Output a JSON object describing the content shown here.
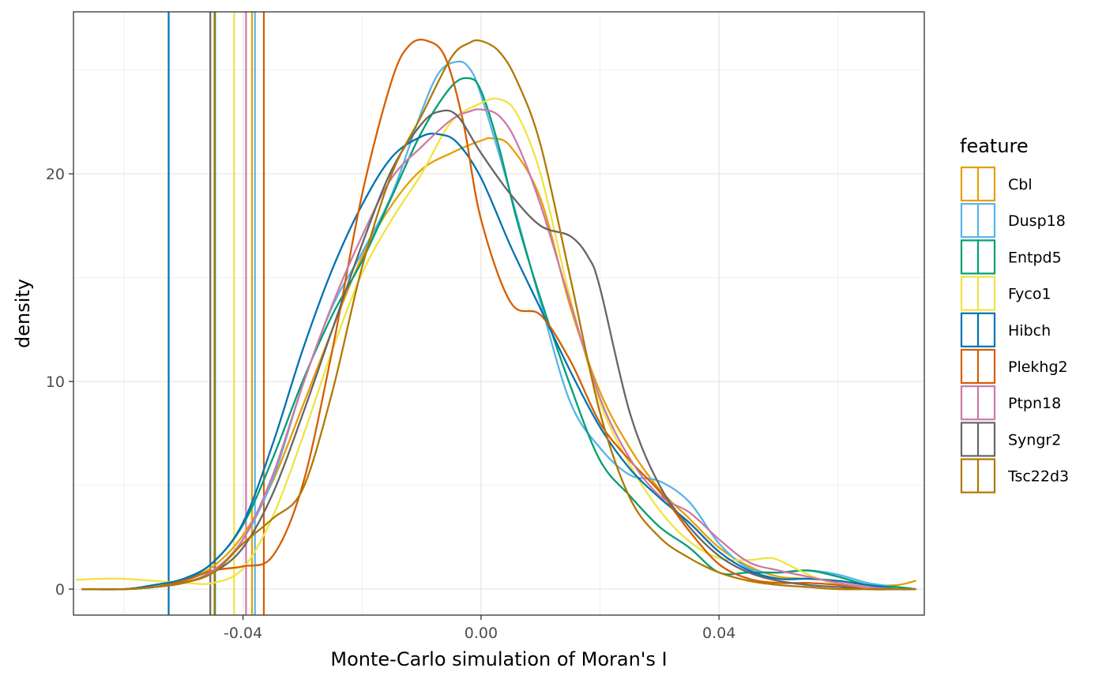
{
  "chart_data": {
    "type": "line",
    "subtype": "density",
    "title": "",
    "xlabel": "Monte-Carlo simulation of Moran's I",
    "ylabel": "density",
    "xlim": [
      -0.0685,
      0.0745
    ],
    "ylim": [
      -1.25,
      27.8
    ],
    "x_ticks": [
      -0.04,
      0.0,
      0.04
    ],
    "x_tick_labels": [
      "-0.04",
      "0.00",
      "0.04"
    ],
    "y_ticks": [
      0,
      10,
      20
    ],
    "y_tick_labels": [
      "0",
      "10",
      "20"
    ],
    "grid": true,
    "legend": {
      "title": "feature",
      "placement": "right"
    },
    "series": [
      {
        "name": "Cbl",
        "color": "#E69F00",
        "observed": -0.0385,
        "x": [
          -0.067,
          -0.06,
          -0.055,
          -0.05,
          -0.045,
          -0.04,
          -0.035,
          -0.03,
          -0.025,
          -0.02,
          -0.015,
          -0.01,
          -0.005,
          0,
          0.002,
          0.005,
          0.01,
          0.015,
          0.02,
          0.025,
          0.03,
          0.035,
          0.04,
          0.045,
          0.05,
          0.055,
          0.06,
          0.065,
          0.07,
          0.073
        ],
        "y": [
          0,
          0,
          0.1,
          0.4,
          1.1,
          2.6,
          5.2,
          8.8,
          12.5,
          16.0,
          18.5,
          20.2,
          21.0,
          21.6,
          21.7,
          21.3,
          18.8,
          13.6,
          9.5,
          6.8,
          4.8,
          3.4,
          2.0,
          1.1,
          0.6,
          0.5,
          0.4,
          0.2,
          0.2,
          0.4
        ]
      },
      {
        "name": "Dusp18",
        "color": "#56B4E9",
        "observed": -0.038,
        "x": [
          -0.067,
          -0.06,
          -0.055,
          -0.05,
          -0.045,
          -0.04,
          -0.035,
          -0.03,
          -0.025,
          -0.02,
          -0.015,
          -0.01,
          -0.007,
          -0.004,
          -0.002,
          0,
          0.005,
          0.01,
          0.015,
          0.02,
          0.025,
          0.03,
          0.035,
          0.04,
          0.045,
          0.05,
          0.055,
          0.06,
          0.065,
          0.07,
          0.073
        ],
        "y": [
          0,
          0,
          0.1,
          0.3,
          0.9,
          2.4,
          5.3,
          9.8,
          13.6,
          16.2,
          19.0,
          23.0,
          24.9,
          25.4,
          25.1,
          23.8,
          19.0,
          13.8,
          9.0,
          6.8,
          5.5,
          5.2,
          4.2,
          2.2,
          1.0,
          0.8,
          0.9,
          0.7,
          0.3,
          0.1,
          0
        ]
      },
      {
        "name": "Entpd5",
        "color": "#009E73",
        "observed": -0.0447,
        "x": [
          -0.067,
          -0.06,
          -0.055,
          -0.05,
          -0.045,
          -0.04,
          -0.035,
          -0.03,
          -0.025,
          -0.02,
          -0.015,
          -0.01,
          -0.005,
          -0.002,
          0,
          0.003,
          0.006,
          0.01,
          0.015,
          0.02,
          0.025,
          0.03,
          0.035,
          0.04,
          0.045,
          0.05,
          0.055,
          0.06,
          0.065,
          0.07,
          0.073
        ],
        "y": [
          0,
          0,
          0.1,
          0.4,
          1.3,
          3.1,
          6.3,
          10.0,
          13.2,
          15.8,
          18.9,
          22.0,
          24.2,
          24.6,
          24.0,
          21.3,
          17.8,
          14.0,
          9.8,
          6.2,
          4.5,
          3.0,
          2.0,
          0.8,
          0.8,
          0.8,
          0.9,
          0.6,
          0.2,
          0.1,
          0
        ]
      },
      {
        "name": "Fyco1",
        "color": "#F0E442",
        "observed": -0.0415,
        "x": [
          -0.068,
          -0.064,
          -0.06,
          -0.055,
          -0.05,
          -0.045,
          -0.04,
          -0.035,
          -0.03,
          -0.025,
          -0.02,
          -0.015,
          -0.01,
          -0.005,
          0,
          0.003,
          0.006,
          0.01,
          0.015,
          0.02,
          0.025,
          0.03,
          0.035,
          0.04,
          0.045,
          0.048,
          0.05,
          0.055,
          0.06,
          0.065,
          0.07
        ],
        "y": [
          0.45,
          0.5,
          0.5,
          0.4,
          0.3,
          0.3,
          1.0,
          3.5,
          7.3,
          11.5,
          15.2,
          17.8,
          20.0,
          22.5,
          23.4,
          23.6,
          22.9,
          20.0,
          14.0,
          9.0,
          6.0,
          3.8,
          2.3,
          1.5,
          1.4,
          1.5,
          1.4,
          0.7,
          0.2,
          0,
          0
        ]
      },
      {
        "name": "Hibch",
        "color": "#0072B2",
        "observed": -0.0525,
        "x": [
          -0.067,
          -0.06,
          -0.055,
          -0.05,
          -0.045,
          -0.04,
          -0.035,
          -0.03,
          -0.025,
          -0.02,
          -0.015,
          -0.01,
          -0.007,
          -0.004,
          0,
          0.005,
          0.01,
          0.015,
          0.02,
          0.025,
          0.03,
          0.035,
          0.04,
          0.045,
          0.05,
          0.055,
          0.06,
          0.065,
          0.07,
          0.073
        ],
        "y": [
          0,
          0,
          0.2,
          0.5,
          1.3,
          3.2,
          7.0,
          11.5,
          15.4,
          18.5,
          20.8,
          21.8,
          21.9,
          21.5,
          19.8,
          16.5,
          13.5,
          10.5,
          7.8,
          5.8,
          4.4,
          3.2,
          1.8,
          0.9,
          0.5,
          0.5,
          0.4,
          0.2,
          0,
          0
        ]
      },
      {
        "name": "Plekhg2",
        "color": "#D55E00",
        "observed": -0.0365,
        "x": [
          -0.067,
          -0.06,
          -0.055,
          -0.05,
          -0.045,
          -0.04,
          -0.035,
          -0.03,
          -0.025,
          -0.02,
          -0.015,
          -0.012,
          -0.009,
          -0.006,
          -0.003,
          0,
          0.005,
          0.01,
          0.015,
          0.02,
          0.025,
          0.03,
          0.035,
          0.04,
          0.045,
          0.05,
          0.055,
          0.06,
          0.065,
          0.07,
          0.073
        ],
        "y": [
          0,
          0,
          0.1,
          0.4,
          0.9,
          1.1,
          1.6,
          5.0,
          11.5,
          19.0,
          24.5,
          26.2,
          26.4,
          25.6,
          22.5,
          17.8,
          13.8,
          13.2,
          11.0,
          8.0,
          6.2,
          4.7,
          2.8,
          1.2,
          0.5,
          0.3,
          0.3,
          0.2,
          0,
          0,
          0
        ]
      },
      {
        "name": "Ptpn18",
        "color": "#CC79A7",
        "observed": -0.0395,
        "x": [
          -0.067,
          -0.06,
          -0.055,
          -0.05,
          -0.045,
          -0.04,
          -0.035,
          -0.03,
          -0.025,
          -0.02,
          -0.015,
          -0.01,
          -0.005,
          -0.002,
          0,
          0.003,
          0.006,
          0.01,
          0.015,
          0.02,
          0.025,
          0.03,
          0.035,
          0.04,
          0.045,
          0.05,
          0.055,
          0.06,
          0.065,
          0.07,
          0.073
        ],
        "y": [
          0,
          0,
          0.1,
          0.3,
          0.9,
          2.4,
          5.5,
          9.8,
          13.7,
          17.0,
          19.8,
          21.3,
          22.6,
          23.0,
          23.1,
          22.8,
          21.5,
          18.5,
          13.8,
          9.2,
          6.3,
          4.5,
          3.7,
          2.4,
          1.3,
          0.9,
          0.6,
          0.3,
          0.1,
          0,
          0
        ]
      },
      {
        "name": "Syngr2",
        "color": "#666666",
        "observed": -0.0455,
        "x": [
          -0.067,
          -0.06,
          -0.055,
          -0.05,
          -0.045,
          -0.04,
          -0.035,
          -0.03,
          -0.025,
          -0.02,
          -0.015,
          -0.01,
          -0.007,
          -0.004,
          0,
          0.005,
          0.01,
          0.015,
          0.018,
          0.02,
          0.025,
          0.03,
          0.035,
          0.04,
          0.045,
          0.05,
          0.055,
          0.06,
          0.065,
          0.07,
          0.073
        ],
        "y": [
          0,
          0,
          0.1,
          0.3,
          0.8,
          2.0,
          4.6,
          8.4,
          12.5,
          16.6,
          20.2,
          22.4,
          23.0,
          22.8,
          21.0,
          19.0,
          17.5,
          17.0,
          16.0,
          14.5,
          8.5,
          5.0,
          3.0,
          1.6,
          0.8,
          0.4,
          0.2,
          0.1,
          0,
          0,
          0
        ]
      },
      {
        "name": "Tsc22d3",
        "color": "#B07800",
        "observed": -0.0448,
        "x": [
          -0.067,
          -0.06,
          -0.055,
          -0.05,
          -0.045,
          -0.04,
          -0.035,
          -0.03,
          -0.025,
          -0.02,
          -0.015,
          -0.01,
          -0.005,
          -0.002,
          0,
          0.003,
          0.006,
          0.01,
          0.015,
          0.02,
          0.025,
          0.03,
          0.035,
          0.04,
          0.045,
          0.05,
          0.055,
          0.06,
          0.065,
          0.07,
          0.073
        ],
        "y": [
          0,
          0,
          0.1,
          0.3,
          0.8,
          2.2,
          3.4,
          4.8,
          9.5,
          15.5,
          20.0,
          22.8,
          25.6,
          26.3,
          26.4,
          25.9,
          24.5,
          21.4,
          15.0,
          8.5,
          4.4,
          2.5,
          1.5,
          0.8,
          0.4,
          0.2,
          0.1,
          0,
          0,
          0,
          0
        ]
      }
    ]
  }
}
